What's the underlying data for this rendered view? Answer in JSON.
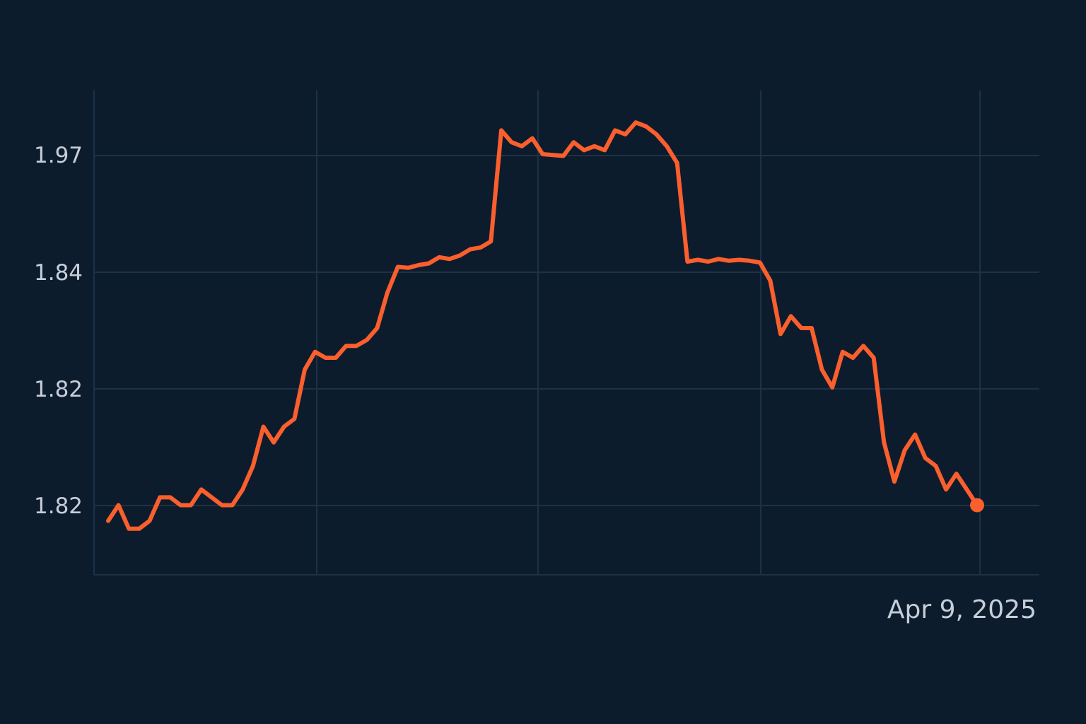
{
  "colors": {
    "background": "#0d1c2d",
    "grid": "#1c3247",
    "series": "#fa5f2d",
    "text": "#c6ced8"
  },
  "chart_data": {
    "type": "line",
    "title": "",
    "xlabel": "",
    "ylabel": "",
    "grid": true,
    "legend": "none",
    "y_tick_labels": [
      "1.97",
      "1.84",
      "1.82",
      "1.82"
    ],
    "x_tick_labels": [
      "",
      "",
      "",
      "",
      "Apr 9, 2025"
    ],
    "end_label": "Apr 9, 2025",
    "series": [
      {
        "values": [
          1.803,
          1.805,
          1.802,
          1.802,
          1.803,
          1.806,
          1.806,
          1.805,
          1.805,
          1.807,
          1.806,
          1.805,
          1.805,
          1.807,
          1.81,
          1.815,
          1.813,
          1.815,
          1.816,
          1.823,
          1.826,
          1.825,
          1.825,
          1.827,
          1.827,
          1.828,
          1.83,
          1.836,
          1.842,
          1.841,
          1.844,
          1.846,
          1.853,
          1.851,
          1.855,
          1.862,
          1.864,
          1.871,
          1.976,
          1.973,
          1.972,
          1.974,
          1.97,
          1.969,
          1.968,
          1.973,
          1.971,
          1.972,
          1.971,
          1.976,
          1.975,
          1.978,
          1.977,
          1.975,
          1.972,
          1.96,
          1.848,
          1.85,
          1.848,
          1.851,
          1.849,
          1.85,
          1.849,
          1.847,
          1.838,
          1.829,
          1.832,
          1.83,
          1.83,
          1.823,
          1.82,
          1.826,
          1.825,
          1.827,
          1.825,
          1.813,
          1.808,
          1.812,
          1.814,
          1.811,
          1.81,
          1.807,
          1.809,
          1.807,
          1.805
        ]
      }
    ]
  }
}
